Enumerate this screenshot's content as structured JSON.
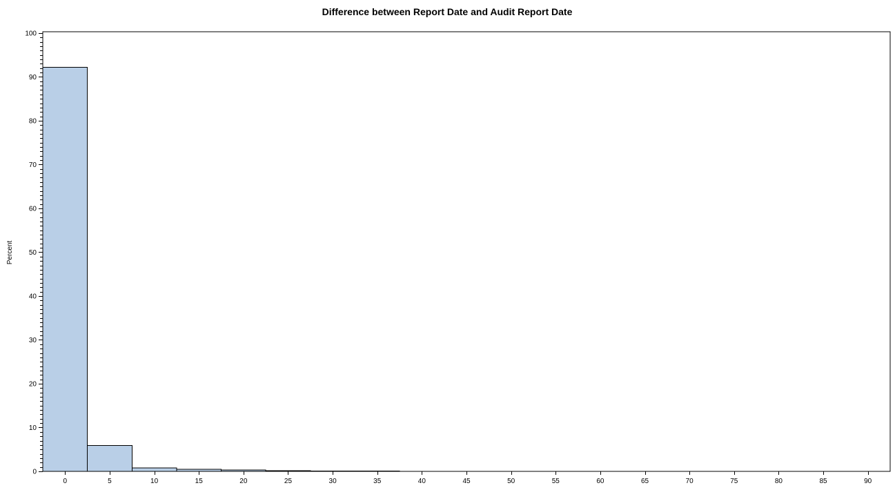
{
  "chart_data": {
    "type": "bar",
    "title": "Difference between Report Date and Audit Report Date",
    "xlabel": "",
    "ylabel": "Percent",
    "bin_width": 5,
    "bin_midpoints": [
      0,
      5,
      10,
      15,
      20,
      25,
      30,
      35,
      40,
      45,
      50,
      55,
      60,
      65,
      70,
      75,
      80,
      85,
      90
    ],
    "values": [
      92.2,
      5.9,
      0.8,
      0.5,
      0.3,
      0.15,
      0.1,
      0.05,
      0.02,
      0.01,
      0.01,
      0.01,
      0.01,
      0.01,
      0.01,
      0.01,
      0.01,
      0.01,
      0.01
    ],
    "x_tick_labels": [
      "0",
      "5",
      "10",
      "15",
      "20",
      "25",
      "30",
      "35",
      "40",
      "45",
      "50",
      "55",
      "60",
      "65",
      "70",
      "75",
      "80",
      "85",
      "90"
    ],
    "y_tick_labels": [
      "0",
      "10",
      "20",
      "30",
      "40",
      "50",
      "60",
      "70",
      "80",
      "90",
      "100"
    ],
    "ylim": [
      0,
      100
    ],
    "xlim": [
      -2.5,
      92.5
    ],
    "y_major_step": 10,
    "y_minor_step": 1,
    "grid": false,
    "legend": "none",
    "colors": {
      "bar_fill": "#B9CFE7",
      "bar_stroke": "#000000",
      "frame": "#000000"
    }
  }
}
